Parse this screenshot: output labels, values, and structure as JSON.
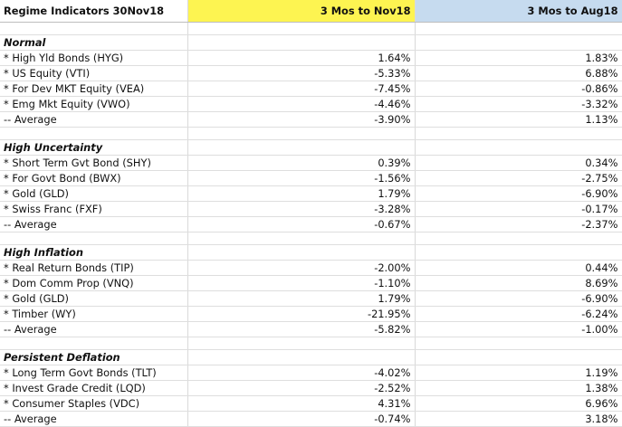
{
  "header": {
    "title": "Regime Indicators 30Nov18",
    "col1": "3 Mos to Nov18",
    "col2": "3 Mos to Aug18"
  },
  "sections": [
    {
      "name": "Normal",
      "rows": [
        {
          "label": "* High Yld Bonds (HYG)",
          "v1": "1.64%",
          "v2": "1.83%"
        },
        {
          "label": "* US Equity (VTI)",
          "v1": "-5.33%",
          "v2": "6.88%"
        },
        {
          "label": "* For Dev MKT Equity (VEA)",
          "v1": "-7.45%",
          "v2": "-0.86%"
        },
        {
          "label": "* Emg Mkt Equity (VWO)",
          "v1": "-4.46%",
          "v2": "-3.32%"
        }
      ],
      "average": {
        "label": "  -- Average",
        "v1": "-3.90%",
        "v2": "1.13%"
      }
    },
    {
      "name": "High Uncertainty",
      "rows": [
        {
          "label": "*  Short Term Gvt Bond (SHY)",
          "v1": "0.39%",
          "v2": "0.34%"
        },
        {
          "label": "*  For Govt Bond (BWX)",
          "v1": "-1.56%",
          "v2": "-2.75%"
        },
        {
          "label": "*  Gold (GLD)",
          "v1": "1.79%",
          "v2": "-6.90%"
        },
        {
          "label": "*  Swiss Franc (FXF)",
          "v1": "-3.28%",
          "v2": "-0.17%"
        }
      ],
      "average": {
        "label": "  -- Average",
        "v1": "-0.67%",
        "v2": "-2.37%"
      }
    },
    {
      "name": "High Inflation",
      "rows": [
        {
          "label": "*  Real Return Bonds (TIP)",
          "v1": "-2.00%",
          "v2": "0.44%"
        },
        {
          "label": "*  Dom Comm Prop (VNQ)",
          "v1": "-1.10%",
          "v2": "8.69%"
        },
        {
          "label": "*  Gold (GLD)",
          "v1": "1.79%",
          "v2": "-6.90%"
        },
        {
          "label": "*  Timber (WY)",
          "v1": "-21.95%",
          "v2": "-6.24%"
        }
      ],
      "average": {
        "label": "  -- Average",
        "v1": "-5.82%",
        "v2": "-1.00%"
      }
    },
    {
      "name": "Persistent Deflation",
      "rows": [
        {
          "label": "*  Long Term Govt Bonds (TLT)",
          "v1": "-4.02%",
          "v2": "1.19%"
        },
        {
          "label": "*  Invest Grade Credit (LQD)",
          "v1": "-2.52%",
          "v2": "1.38%"
        },
        {
          "label": "*  Consumer Staples (VDC)",
          "v1": "4.31%",
          "v2": "6.96%"
        }
      ],
      "average": {
        "label": "  -- Average",
        "v1": "-0.74%",
        "v2": "3.18%"
      }
    }
  ]
}
